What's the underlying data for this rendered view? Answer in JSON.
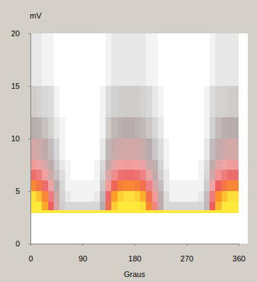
{
  "chart_data": {
    "type": "heatmap",
    "x_label": "Graus",
    "y_label": "mV",
    "xlim": [
      0,
      360
    ],
    "ylim": [
      0,
      20
    ],
    "xticks": [
      0,
      90,
      180,
      270,
      360
    ],
    "yticks": [
      0,
      5,
      10,
      15,
      20
    ],
    "zlim": [
      0,
      100
    ],
    "x_bins": [
      0,
      10,
      20,
      30,
      40,
      50,
      60,
      70,
      80,
      90,
      100,
      110,
      120,
      130,
      140,
      150,
      160,
      170,
      180,
      190,
      200,
      210,
      220,
      230,
      240,
      250,
      260,
      270,
      280,
      290,
      300,
      310,
      320,
      330,
      340,
      350,
      360
    ],
    "y_bins": [
      2.9,
      3.2,
      4,
      5,
      6,
      7,
      8,
      10,
      12,
      15,
      20
    ],
    "cells": [
      [
        95,
        95,
        95,
        95,
        95,
        95,
        95,
        95,
        95,
        95,
        95,
        95,
        95,
        95,
        95,
        95,
        95,
        95,
        95,
        95,
        95,
        95,
        95,
        95,
        95,
        95,
        95,
        95,
        95,
        95,
        95,
        95,
        95,
        95,
        95,
        95
      ],
      [
        100,
        90,
        70,
        45,
        20,
        6,
        4,
        4,
        4,
        4,
        4,
        4,
        12,
        50,
        80,
        95,
        100,
        100,
        95,
        85,
        60,
        35,
        15,
        4,
        4,
        4,
        4,
        4,
        4,
        4,
        10,
        45,
        75,
        90,
        100,
        100
      ],
      [
        85,
        77,
        60,
        38,
        17,
        5,
        2,
        1,
        1,
        1,
        1,
        2,
        10,
        43,
        68,
        81,
        85,
        85,
        81,
        72,
        51,
        30,
        13,
        3,
        1,
        1,
        1,
        1,
        1,
        2,
        9,
        38,
        64,
        77,
        85,
        85
      ],
      [
        60,
        54,
        42,
        27,
        12,
        4,
        1,
        1,
        1,
        1,
        1,
        1,
        7,
        30,
        48,
        57,
        60,
        60,
        57,
        51,
        36,
        21,
        9,
        2,
        1,
        1,
        1,
        1,
        1,
        1,
        6,
        27,
        45,
        54,
        60,
        60
      ],
      [
        42,
        38,
        29,
        19,
        8,
        3,
        1,
        0,
        0,
        0,
        0,
        1,
        5,
        21,
        34,
        40,
        42,
        42,
        40,
        36,
        25,
        15,
        6,
        2,
        0,
        0,
        0,
        0,
        0,
        1,
        4,
        19,
        32,
        38,
        42,
        42
      ],
      [
        30,
        27,
        21,
        14,
        6,
        2,
        1,
        0,
        0,
        0,
        0,
        1,
        4,
        15,
        24,
        29,
        30,
        30,
        29,
        26,
        18,
        11,
        5,
        1,
        0,
        0,
        0,
        0,
        0,
        1,
        3,
        14,
        23,
        27,
        30,
        30
      ],
      [
        20,
        18,
        14,
        9,
        4,
        1,
        0,
        0,
        0,
        0,
        0,
        0,
        2,
        10,
        16,
        19,
        20,
        20,
        19,
        17,
        12,
        7,
        3,
        1,
        0,
        0,
        0,
        0,
        0,
        0,
        2,
        9,
        15,
        18,
        20,
        20
      ],
      [
        12,
        11,
        8,
        5,
        2,
        1,
        0,
        0,
        0,
        0,
        0,
        0,
        1,
        6,
        10,
        11,
        12,
        12,
        11,
        10,
        7,
        4,
        2,
        0,
        0,
        0,
        0,
        0,
        0,
        0,
        1,
        5,
        9,
        11,
        12,
        12
      ],
      [
        6,
        5,
        4,
        3,
        1,
        0,
        0,
        0,
        0,
        0,
        0,
        0,
        1,
        3,
        5,
        6,
        6,
        6,
        6,
        5,
        4,
        2,
        1,
        0,
        0,
        0,
        0,
        0,
        0,
        0,
        1,
        3,
        5,
        5,
        6,
        6
      ],
      [
        2,
        2,
        1,
        1,
        0,
        0,
        0,
        0,
        0,
        0,
        0,
        0,
        0,
        1,
        2,
        2,
        2,
        2,
        2,
        2,
        1,
        1,
        0,
        0,
        0,
        0,
        0,
        0,
        0,
        0,
        0,
        1,
        2,
        2,
        2,
        2
      ]
    ]
  }
}
